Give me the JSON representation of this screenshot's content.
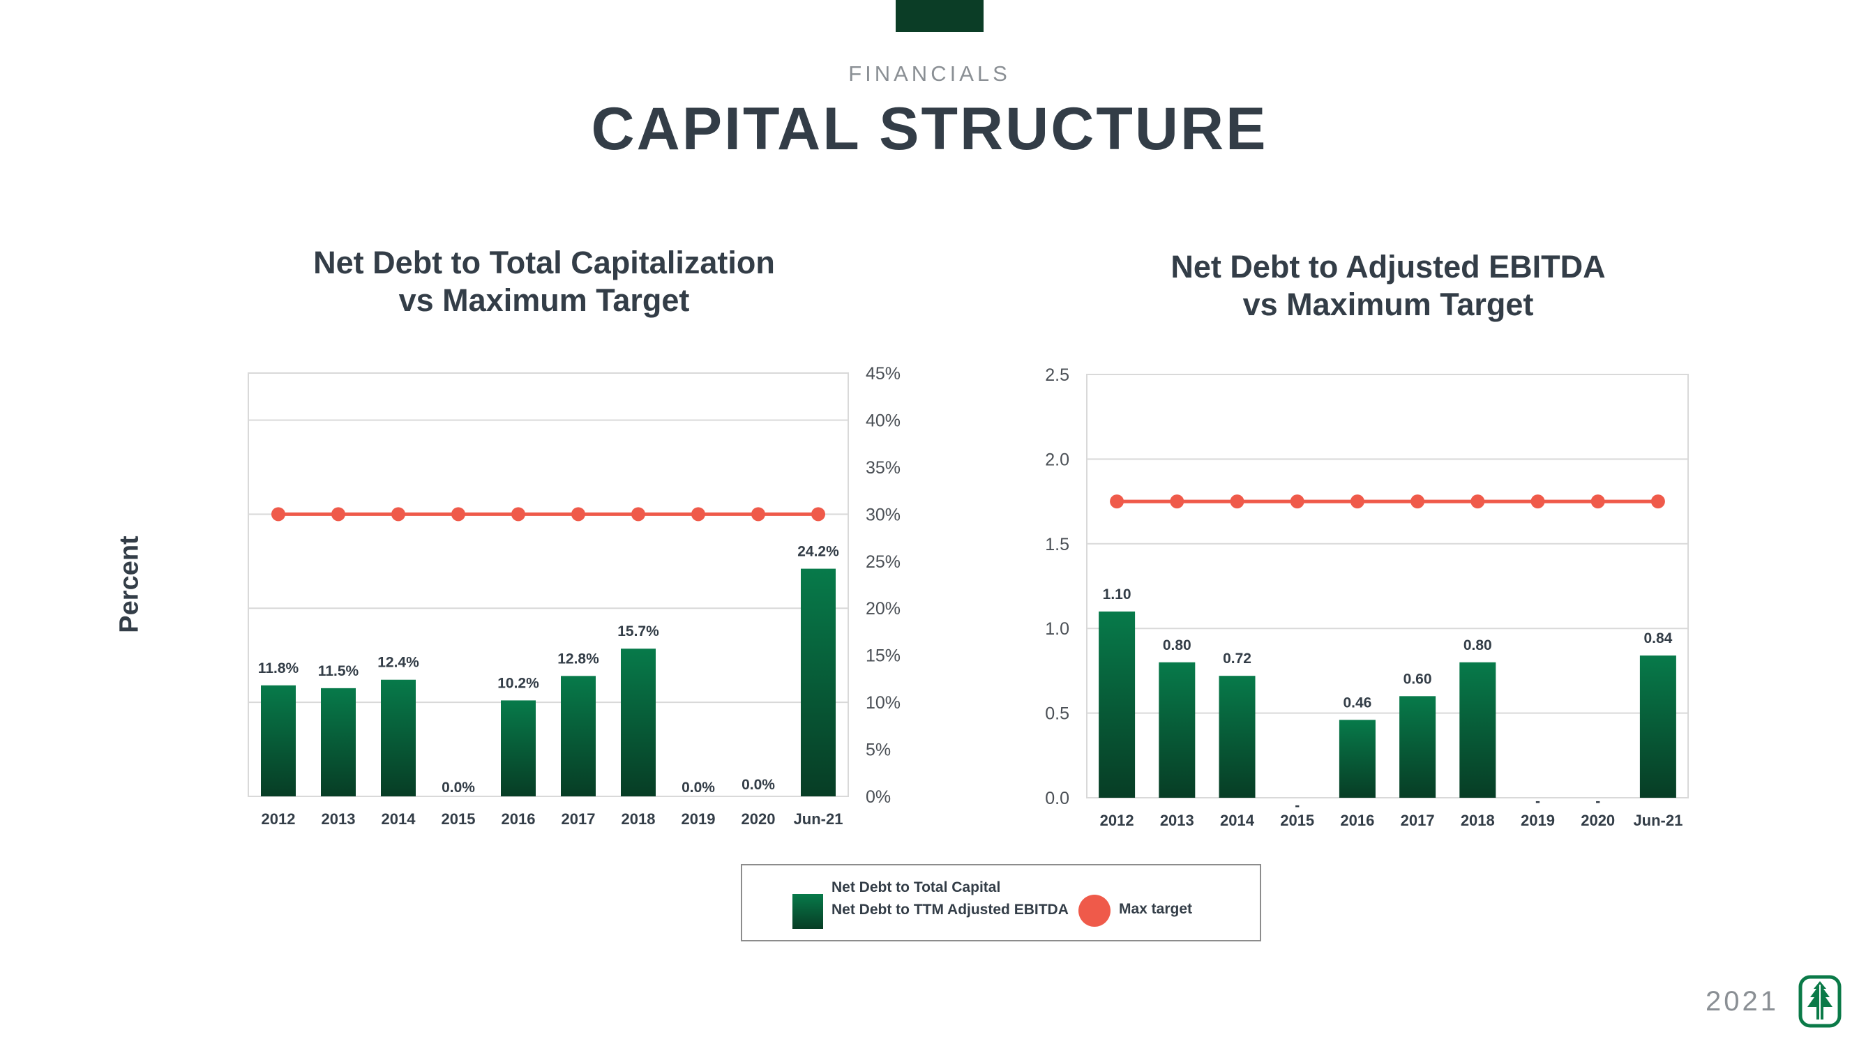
{
  "header": {
    "eyebrow": "FINANCIALS",
    "title": "CAPITAL STRUCTURE"
  },
  "colors": {
    "bar_top": "#077a4a",
    "bar_bottom": "#073d25",
    "target": "#ef5a4a",
    "accent": "#0b3d26",
    "text": "#333d47",
    "grid": "#d9d9d9"
  },
  "legend": {
    "line1": "Net Debt to Total Capital",
    "line2": "Net Debt to TTM Adjusted EBITDA",
    "target": "Max target"
  },
  "footer": {
    "year": "2021",
    "logo_icon": "pine-tree-logo-icon"
  },
  "chart_data": [
    {
      "type": "bar",
      "title_line1": "Net Debt to Total Capitalization",
      "title_line2": "vs Maximum Target",
      "ylabel": "Percent",
      "ylim": [
        0,
        45
      ],
      "yticks": [
        0,
        5,
        10,
        15,
        20,
        25,
        30,
        35,
        40,
        45
      ],
      "ytick_labels": [
        "0%",
        "5%",
        "10%",
        "15%",
        "20%",
        "25%",
        "30%",
        "35%",
        "40%",
        "45%"
      ],
      "grid_values": [
        10,
        20,
        30,
        40
      ],
      "axis_side": "right",
      "categories": [
        "2012",
        "2013",
        "2014",
        "2015",
        "2016",
        "2017",
        "2018",
        "2019",
        "2020",
        "Jun-21"
      ],
      "series": [
        {
          "name": "Net Debt to Total Capital",
          "kind": "bar",
          "values": [
            11.8,
            11.5,
            12.4,
            0.0,
            10.2,
            12.8,
            15.7,
            0.0,
            0.0,
            24.2
          ],
          "labels": [
            "11.8%",
            "11.5%",
            "12.4%",
            "0.0%",
            "10.2%",
            "12.8%",
            "15.7%",
            "0.0%",
            "0.0%",
            "24.2%"
          ]
        },
        {
          "name": "Max target",
          "kind": "line",
          "values": [
            30,
            30,
            30,
            30,
            30,
            30,
            30,
            30,
            30,
            30
          ]
        }
      ]
    },
    {
      "type": "bar",
      "title_line1": "Net Debt to Adjusted EBITDA",
      "title_line2": "vs Maximum Target",
      "ylim": [
        0,
        2.5
      ],
      "yticks": [
        0,
        0.5,
        1.0,
        1.5,
        2.0,
        2.5
      ],
      "ytick_labels": [
        "0.0",
        "0.5",
        "1.0",
        "1.5",
        "2.0",
        "2.5"
      ],
      "grid_values": [
        0.5,
        1.0,
        1.5,
        2.0
      ],
      "axis_side": "left",
      "categories": [
        "2012",
        "2013",
        "2014",
        "2015",
        "2016",
        "2017",
        "2018",
        "2019",
        "2020",
        "Jun-21"
      ],
      "series": [
        {
          "name": "Net Debt to TTM Adjusted EBITDA",
          "kind": "bar",
          "values": [
            1.1,
            0.8,
            0.72,
            0,
            0.46,
            0.6,
            0.8,
            0,
            0,
            0.84
          ],
          "labels": [
            "1.10",
            "0.80",
            "0.72",
            "-",
            "0.46",
            "0.60",
            "0.80",
            "-",
            "-",
            "0.84"
          ]
        },
        {
          "name": "Max target",
          "kind": "line",
          "values": [
            1.75,
            1.75,
            1.75,
            1.75,
            1.75,
            1.75,
            1.75,
            1.75,
            1.75,
            1.75
          ]
        }
      ]
    }
  ]
}
